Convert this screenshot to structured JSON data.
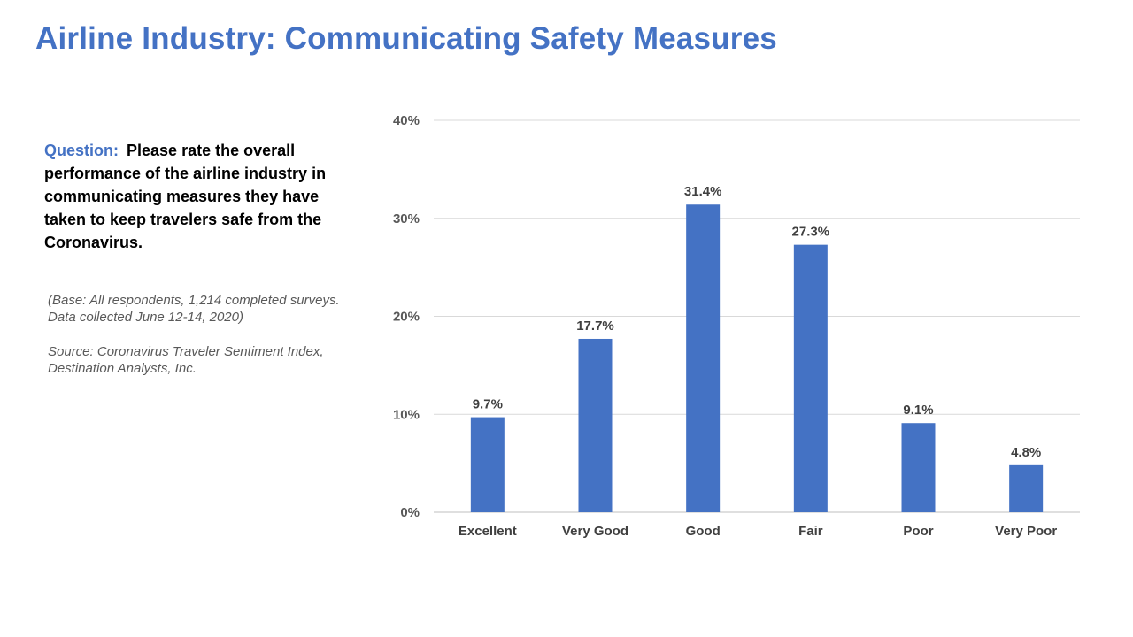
{
  "slide": {
    "title": "Airline Industry: Communicating Safety Measures"
  },
  "question": {
    "label": "Question:",
    "text": "Please rate the overall performance of the airline industry in communicating measures they have taken to keep travelers safe from the Coronavirus."
  },
  "notes": {
    "base": "(Base: All respondents, 1,214 completed surveys. Data collected June 12-14, 2020)",
    "source": "Source: Coronavirus Traveler Sentiment Index, Destination Analysts, Inc."
  },
  "colors": {
    "accent": "#4472c4",
    "bar": "#4472c4",
    "gridline": "#d9d9d9"
  },
  "chart_data": {
    "type": "bar",
    "categories": [
      "Excellent",
      "Very Good",
      "Good",
      "Fair",
      "Poor",
      "Very Poor"
    ],
    "values": [
      9.7,
      17.7,
      31.4,
      27.3,
      9.1,
      4.8
    ],
    "data_labels": [
      "9.7%",
      "17.7%",
      "31.4%",
      "27.3%",
      "9.1%",
      "4.8%"
    ],
    "ylim": [
      0,
      40
    ],
    "yticks": [
      0,
      10,
      20,
      30,
      40
    ],
    "ytick_labels": [
      "0%",
      "10%",
      "20%",
      "30%",
      "40%"
    ],
    "grid": true,
    "legend": "none"
  }
}
